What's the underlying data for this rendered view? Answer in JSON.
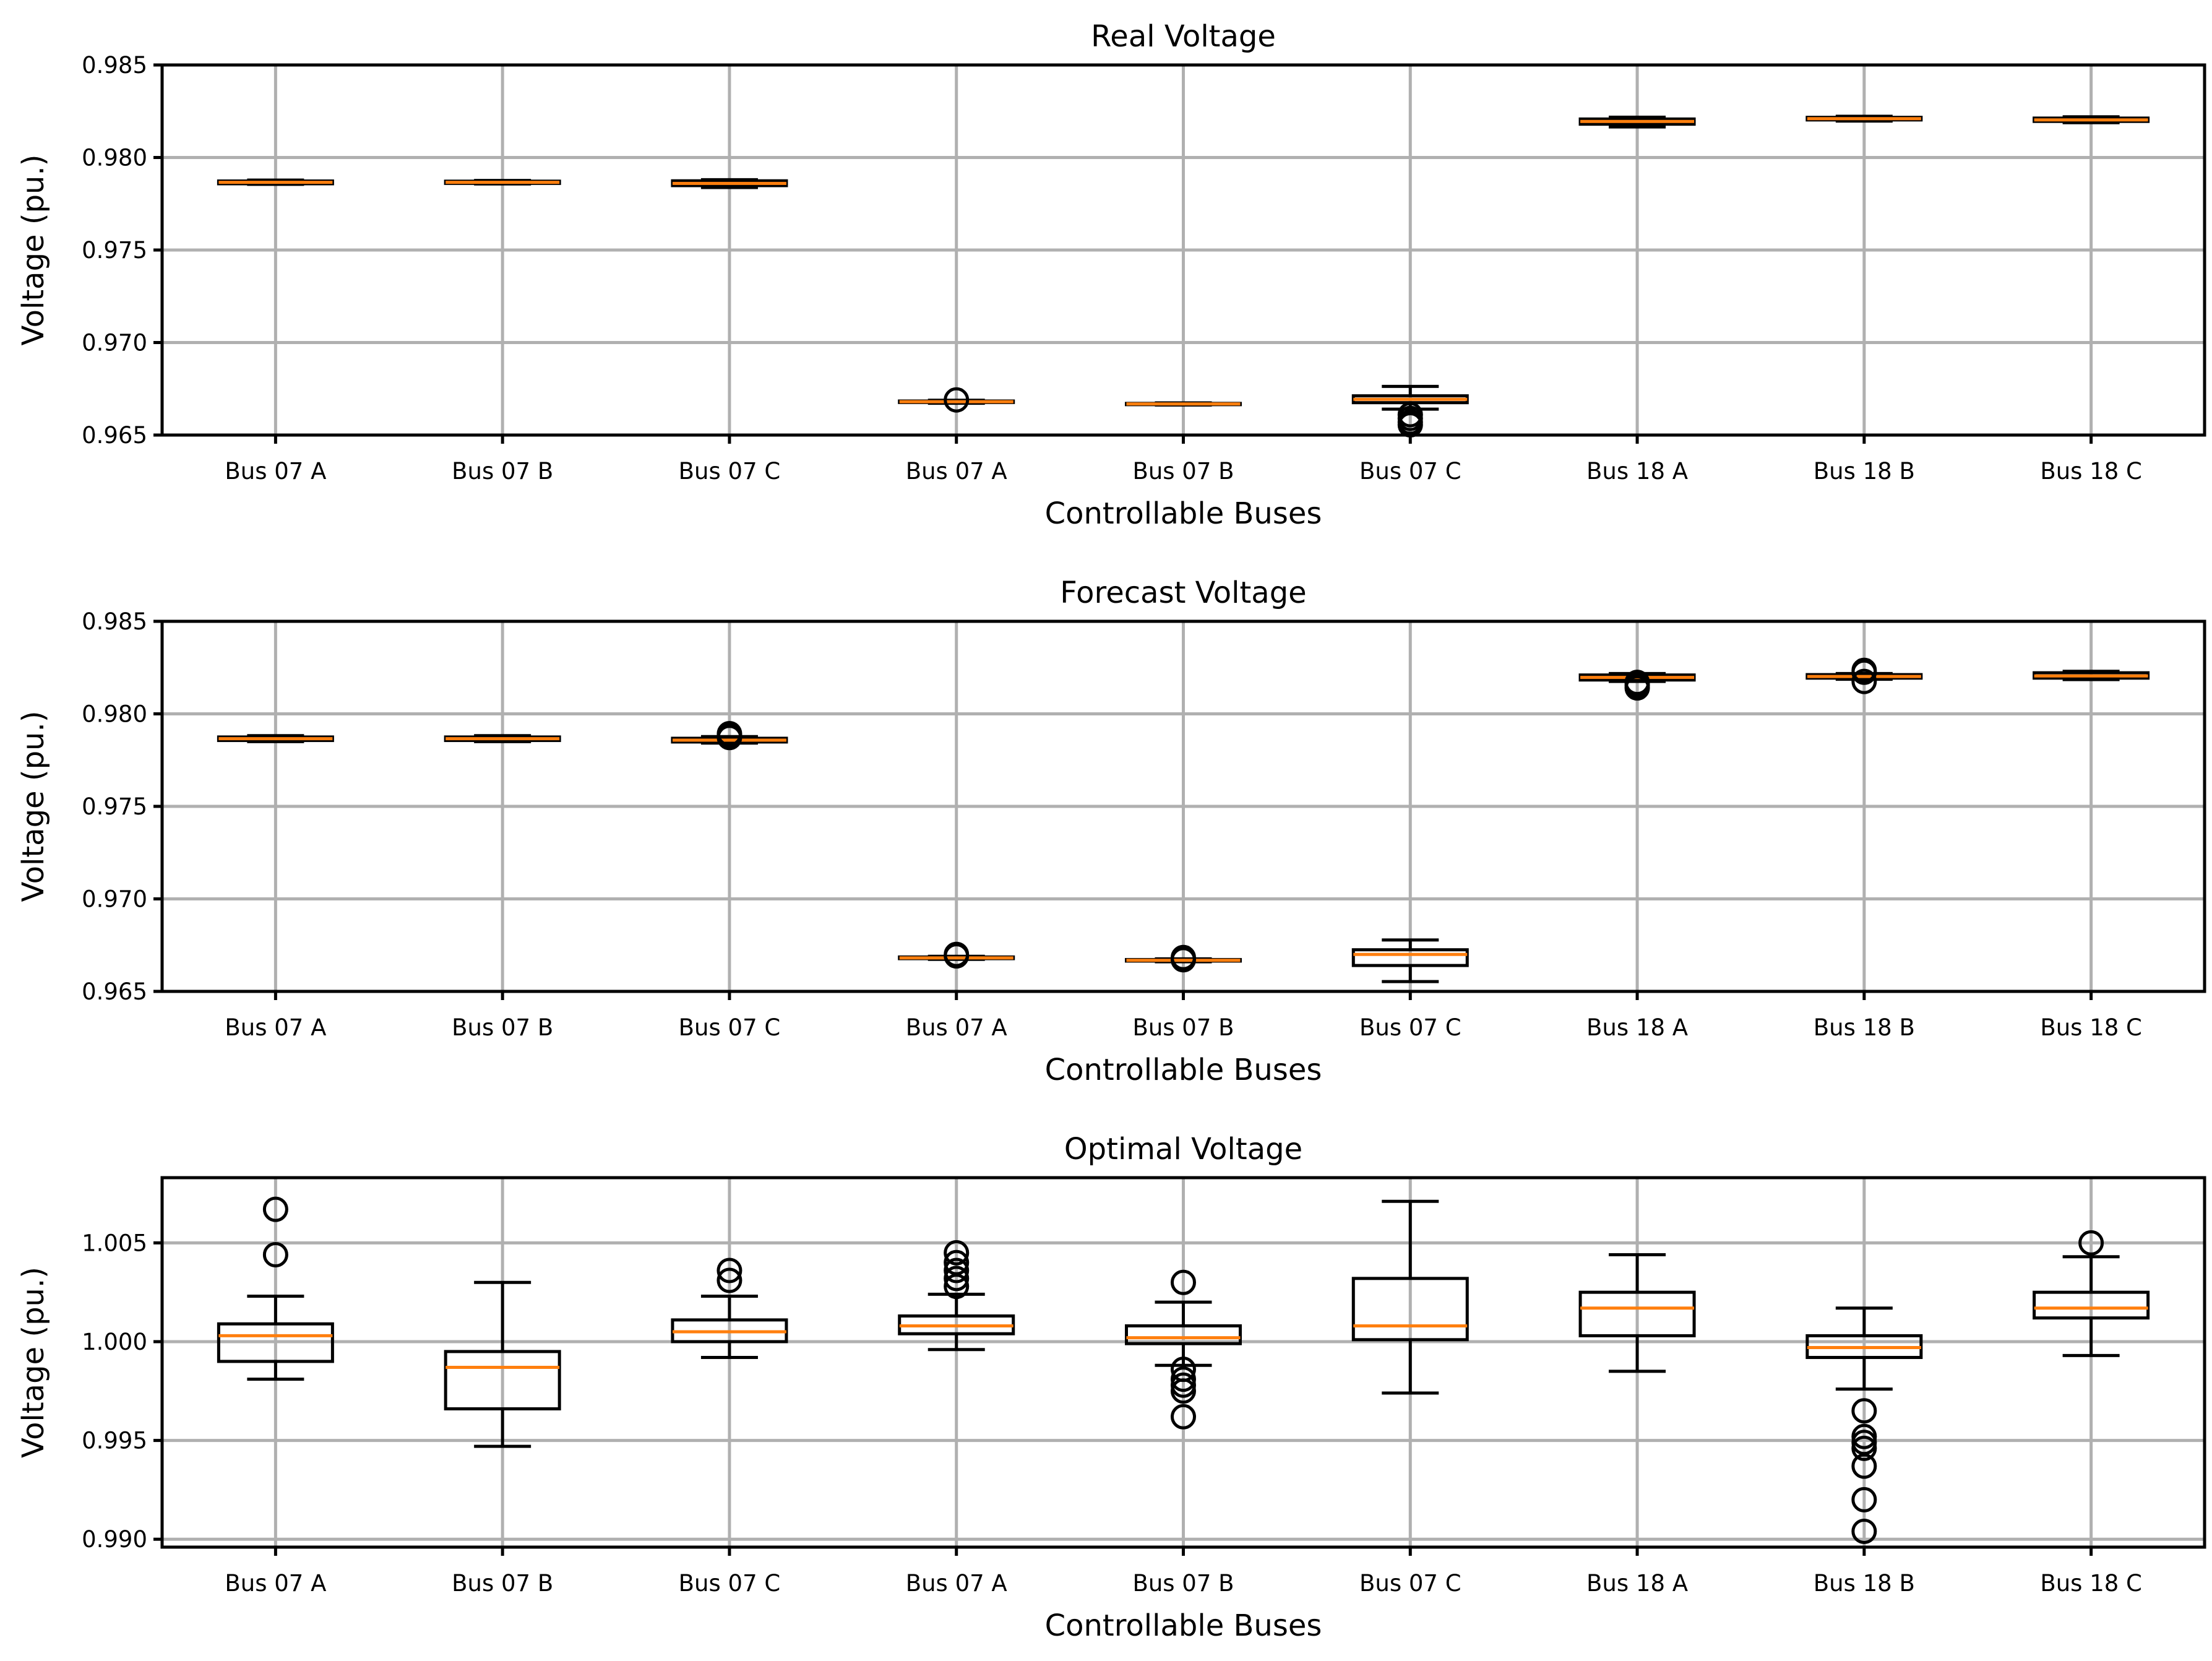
{
  "chart_data": [
    {
      "type": "boxplot",
      "title": "Real Voltage",
      "xlabel": "Controllable Buses",
      "ylabel": "Voltage (pu.)",
      "ylim": [
        0.965,
        0.985
      ],
      "yticks": [
        "0.965",
        "0.970",
        "0.975",
        "0.980",
        "0.985"
      ],
      "ytick_values": [
        0.965,
        0.97,
        0.975,
        0.98,
        0.985
      ],
      "grid": true,
      "categories": [
        "Bus 07 A",
        "Bus 07 B",
        "Bus 07 C",
        "Bus 07 A",
        "Bus 07 B",
        "Bus 07 C",
        "Bus 18 A",
        "Bus 18 B",
        "Bus 18 C"
      ],
      "boxes": [
        {
          "whislo": 0.97855,
          "q1": 0.97858,
          "med": 0.97866,
          "q3": 0.97873,
          "whishi": 0.97878,
          "fliers": []
        },
        {
          "whislo": 0.97857,
          "q1": 0.9786,
          "med": 0.97866,
          "q3": 0.97872,
          "whishi": 0.97876,
          "fliers": []
        },
        {
          "whislo": 0.97838,
          "q1": 0.97848,
          "med": 0.9786,
          "q3": 0.97874,
          "whishi": 0.9788,
          "fliers": []
        },
        {
          "whislo": 0.96672,
          "q1": 0.96676,
          "med": 0.9668,
          "q3": 0.96684,
          "whishi": 0.96688,
          "fliers": [
            0.9669
          ]
        },
        {
          "whislo": 0.96662,
          "q1": 0.96665,
          "med": 0.96668,
          "q3": 0.96671,
          "whishi": 0.96674,
          "fliers": []
        },
        {
          "whislo": 0.9664,
          "q1": 0.96675,
          "med": 0.96693,
          "q3": 0.96712,
          "whishi": 0.96763,
          "fliers": [
            0.9661,
            0.9659,
            0.9657,
            0.96555
          ]
        },
        {
          "whislo": 0.98165,
          "q1": 0.9818,
          "med": 0.98195,
          "q3": 0.98208,
          "whishi": 0.98218,
          "fliers": []
        },
        {
          "whislo": 0.98197,
          "q1": 0.98203,
          "med": 0.9821,
          "q3": 0.98217,
          "whishi": 0.98223,
          "fliers": []
        },
        {
          "whislo": 0.98188,
          "q1": 0.98195,
          "med": 0.98203,
          "q3": 0.98213,
          "whishi": 0.9822,
          "fliers": []
        }
      ]
    },
    {
      "type": "boxplot",
      "title": "Forecast Voltage",
      "xlabel": "Controllable Buses",
      "ylabel": "Voltage (pu.)",
      "ylim": [
        0.965,
        0.985
      ],
      "yticks": [
        "0.965",
        "0.970",
        "0.975",
        "0.980",
        "0.985"
      ],
      "ytick_values": [
        0.965,
        0.97,
        0.975,
        0.98,
        0.985
      ],
      "grid": true,
      "categories": [
        "Bus 07 A",
        "Bus 07 B",
        "Bus 07 C",
        "Bus 07 A",
        "Bus 07 B",
        "Bus 07 C",
        "Bus 18 A",
        "Bus 18 B",
        "Bus 18 C"
      ],
      "boxes": [
        {
          "whislo": 0.9785,
          "q1": 0.97856,
          "med": 0.97866,
          "q3": 0.97875,
          "whishi": 0.97882,
          "fliers": []
        },
        {
          "whislo": 0.9785,
          "q1": 0.97856,
          "med": 0.97866,
          "q3": 0.97875,
          "whishi": 0.97882,
          "fliers": []
        },
        {
          "whislo": 0.97842,
          "q1": 0.97848,
          "med": 0.97858,
          "q3": 0.97868,
          "whishi": 0.97877,
          "fliers": [
            0.97885,
            0.97893,
            0.97872
          ]
        },
        {
          "whislo": 0.96673,
          "q1": 0.96677,
          "med": 0.96681,
          "q3": 0.96686,
          "whishi": 0.9669,
          "fliers": [
            0.967,
            0.96692
          ]
        },
        {
          "whislo": 0.9666,
          "q1": 0.96664,
          "med": 0.96668,
          "q3": 0.96672,
          "whishi": 0.96676,
          "fliers": [
            0.96683,
            0.96671
          ]
        },
        {
          "whislo": 0.96553,
          "q1": 0.9664,
          "med": 0.967,
          "q3": 0.96725,
          "whishi": 0.96778,
          "fliers": []
        },
        {
          "whislo": 0.98175,
          "q1": 0.98183,
          "med": 0.98197,
          "q3": 0.9821,
          "whishi": 0.98218,
          "fliers": [
            0.9817,
            0.98155,
            0.9814
          ]
        },
        {
          "whislo": 0.98187,
          "q1": 0.98193,
          "med": 0.98202,
          "q3": 0.98212,
          "whishi": 0.98218,
          "fliers": [
            0.98225,
            0.98235,
            0.98175
          ]
        },
        {
          "whislo": 0.98185,
          "q1": 0.98193,
          "med": 0.98205,
          "q3": 0.98222,
          "whishi": 0.9823,
          "fliers": []
        }
      ]
    },
    {
      "type": "boxplot",
      "title": "Optimal Voltage",
      "xlabel": "Controllable Buses",
      "ylabel": "Voltage (pu.)",
      "ylim": [
        0.9896,
        1.0083
      ],
      "yticks": [
        "0.990",
        "0.995",
        "1.000",
        "1.005"
      ],
      "ytick_values": [
        0.99,
        0.995,
        1.0,
        1.005
      ],
      "grid": true,
      "categories": [
        "Bus 07 A",
        "Bus 07 B",
        "Bus 07 C",
        "Bus 07 A",
        "Bus 07 B",
        "Bus 07 C",
        "Bus 18 A",
        "Bus 18 B",
        "Bus 18 C"
      ],
      "boxes": [
        {
          "whislo": 0.9981,
          "q1": 0.999,
          "med": 1.0003,
          "q3": 1.0009,
          "whishi": 1.0023,
          "fliers": [
            1.0067,
            1.0044
          ]
        },
        {
          "whislo": 0.9947,
          "q1": 0.9966,
          "med": 0.9987,
          "q3": 0.9995,
          "whishi": 1.003,
          "fliers": []
        },
        {
          "whislo": 0.9992,
          "q1": 1.0,
          "med": 1.0005,
          "q3": 1.0011,
          "whishi": 1.0023,
          "fliers": [
            1.0036,
            1.0031
          ]
        },
        {
          "whislo": 0.9996,
          "q1": 1.0004,
          "med": 1.0008,
          "q3": 1.0013,
          "whishi": 1.0024,
          "fliers": [
            1.0045,
            1.004,
            1.0036,
            1.0032,
            1.0028
          ]
        },
        {
          "whislo": 0.9988,
          "q1": 0.9999,
          "med": 1.0002,
          "q3": 1.0008,
          "whishi": 1.002,
          "fliers": [
            1.003,
            0.9986,
            0.9981,
            0.9978,
            0.9975,
            0.9962
          ]
        },
        {
          "whislo": 0.9974,
          "q1": 1.0001,
          "med": 1.0008,
          "q3": 1.0032,
          "whishi": 1.0071,
          "fliers": []
        },
        {
          "whislo": 0.9985,
          "q1": 1.0003,
          "med": 1.0017,
          "q3": 1.0025,
          "whishi": 1.0044,
          "fliers": []
        },
        {
          "whislo": 0.9976,
          "q1": 0.9992,
          "med": 0.9997,
          "q3": 1.0003,
          "whishi": 1.0017,
          "fliers": [
            0.9965,
            0.9952,
            0.9949,
            0.9946,
            0.9937,
            0.992,
            0.9904
          ]
        },
        {
          "whislo": 0.9993,
          "q1": 1.0012,
          "med": 1.0017,
          "q3": 1.0025,
          "whishi": 1.0043,
          "fliers": [
            1.005
          ]
        }
      ]
    }
  ]
}
